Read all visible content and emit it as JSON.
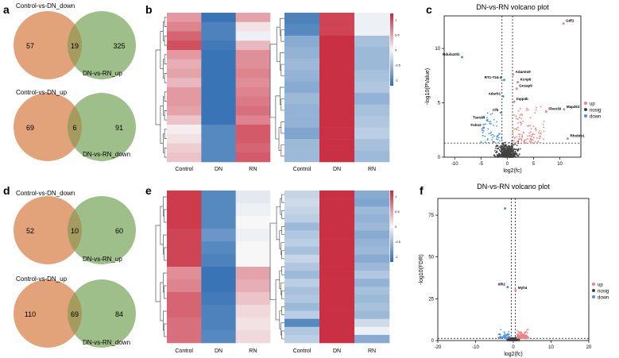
{
  "colors": {
    "venn_left": "#e2a37b",
    "venn_right": "#9fbf8a",
    "venn_overlap": "#a59b5f",
    "heat_low": "#2f6db3",
    "heat_mid": "#f7f7f7",
    "heat_high": "#c8263a",
    "volcano_up": "#f08080",
    "volcano_nosig": "#404040",
    "volcano_down": "#4a90e2"
  },
  "panels": {
    "a": "a",
    "b": "b",
    "c": "c",
    "d": "d",
    "e": "e",
    "f": "f"
  },
  "venns": [
    {
      "set1": "Control-vs-DN_down",
      "set2": "DN-vs-RN_up",
      "left": "57",
      "overlap": "19",
      "right": "325"
    },
    {
      "set1": "Control-vs-DN_up",
      "set2": "DN-vs-RN_down",
      "left": "69",
      "overlap": "6",
      "right": "91"
    },
    {
      "set1": "Control-vs-DN_down",
      "set2": "DN-vs-RN_up",
      "left": "52",
      "overlap": "10",
      "right": "60"
    },
    {
      "set1": "Control-vs-DN_up",
      "set2": "DN-vs-RN_down",
      "left": "110",
      "overlap": "69",
      "right": "84"
    }
  ],
  "heatmap_columns": [
    "Control",
    "DN",
    "RN"
  ],
  "heatmaps": [
    {
      "rows": [
        [
          0.45,
          -0.95,
          0.4
        ],
        [
          0.55,
          -0.85,
          0.1
        ],
        [
          0.7,
          -0.85,
          -0.05
        ],
        [
          0.8,
          -0.9,
          0.3
        ],
        [
          0.45,
          -0.95,
          0.5
        ],
        [
          0.35,
          -0.95,
          0.5
        ],
        [
          0.4,
          -0.95,
          0.55
        ],
        [
          0.3,
          -0.95,
          0.5
        ],
        [
          0.45,
          -0.95,
          0.55
        ],
        [
          0.45,
          -0.95,
          0.6
        ],
        [
          0.4,
          -0.95,
          0.65
        ],
        [
          0.25,
          -0.95,
          0.55
        ],
        [
          0.05,
          -0.8,
          0.75
        ],
        [
          0.1,
          -0.8,
          0.75
        ],
        [
          0.2,
          -0.8,
          0.7
        ],
        [
          0.25,
          -0.8,
          0.75
        ]
      ]
    },
    {
      "rows": [
        [
          -0.85,
          0.85,
          -0.05
        ],
        [
          -0.8,
          0.85,
          -0.05
        ],
        [
          -0.55,
          0.95,
          -0.4
        ],
        [
          -0.5,
          0.95,
          -0.45
        ],
        [
          -0.45,
          0.95,
          -0.45
        ],
        [
          -0.5,
          0.95,
          -0.4
        ],
        [
          -0.55,
          0.95,
          -0.35
        ],
        [
          -0.45,
          0.95,
          -0.5
        ],
        [
          -0.5,
          0.95,
          -0.4
        ],
        [
          -0.5,
          0.95,
          -0.35
        ],
        [
          -0.6,
          0.95,
          -0.3
        ],
        [
          -0.45,
          0.95,
          -0.4
        ],
        [
          -0.45,
          0.95,
          -0.45
        ]
      ]
    },
    {
      "rows": [
        [
          0.9,
          -0.8,
          -0.1
        ],
        [
          0.9,
          -0.8,
          -0.05
        ],
        [
          0.9,
          -0.8,
          0.0
        ],
        [
          0.85,
          -0.7,
          -0.05
        ],
        [
          0.85,
          -0.8,
          0.0
        ],
        [
          0.85,
          -0.85,
          0.0
        ],
        [
          0.5,
          -0.95,
          0.4
        ],
        [
          0.55,
          -0.95,
          0.35
        ],
        [
          0.7,
          -0.9,
          0.25
        ],
        [
          0.7,
          -0.85,
          0.15
        ],
        [
          0.65,
          -0.85,
          0.1
        ],
        [
          0.65,
          -0.8,
          0.15
        ]
      ]
    },
    {
      "rows": [
        [
          -0.25,
          0.95,
          -0.55
        ],
        [
          -0.2,
          0.95,
          -0.6
        ],
        [
          -0.25,
          0.95,
          -0.45
        ],
        [
          -0.3,
          0.95,
          -0.5
        ],
        [
          -0.45,
          0.95,
          -0.45
        ],
        [
          -0.35,
          0.95,
          -0.55
        ],
        [
          -0.3,
          0.95,
          -0.5
        ],
        [
          -0.4,
          0.95,
          -0.45
        ],
        [
          -0.25,
          0.95,
          -0.55
        ],
        [
          -0.35,
          0.95,
          -0.45
        ],
        [
          -0.45,
          0.95,
          -0.35
        ],
        [
          -0.3,
          0.95,
          -0.5
        ],
        [
          -0.4,
          0.95,
          -0.4
        ],
        [
          -0.35,
          0.95,
          -0.45
        ],
        [
          -0.45,
          0.95,
          -0.4
        ],
        [
          -0.3,
          0.95,
          -0.45
        ],
        [
          -0.8,
          0.95,
          -0.2
        ],
        [
          -0.35,
          0.95,
          -0.05
        ],
        [
          -0.3,
          0.95,
          -0.55
        ]
      ]
    }
  ],
  "colorbar_ticks": [
    {
      "v": 1,
      "label": "1"
    },
    {
      "v": 0.5,
      "label": "0.5"
    },
    {
      "v": 0,
      "label": "0"
    },
    {
      "v": -0.5,
      "label": "-0.5"
    },
    {
      "v": -1,
      "label": "-1"
    }
  ],
  "chart_data": [
    {
      "type": "scatter",
      "title": "DN-vs-RN volcano plot",
      "xlabel": "log2(fc)",
      "ylabel": "-log10(PValue)",
      "xlim": [
        -12,
        14
      ],
      "ylim": [
        0,
        13
      ],
      "xticks": [
        -10,
        -5,
        0,
        5,
        10
      ],
      "yticks": [
        0,
        5,
        10
      ],
      "vlines": [
        -1,
        1
      ],
      "hline": 1.3,
      "legend": [
        "up",
        "nosig",
        "down"
      ],
      "legend_position": "right",
      "labeled_points": [
        {
          "gene": "Gdf1",
          "x": 10.7,
          "y": 12.3,
          "class": "up"
        },
        {
          "gene": "Ndufa10l1",
          "x": -8.6,
          "y": 9.2,
          "class": "down"
        },
        {
          "gene": "RT1-T24-4",
          "x": -0.6,
          "y": 7.1,
          "class": "down"
        },
        {
          "gene": "Adamts9",
          "x": 1.1,
          "y": 7.6,
          "class": "up"
        },
        {
          "gene": "Kcnp6",
          "x": 2.0,
          "y": 6.9,
          "class": "up"
        },
        {
          "gene": "Gnsap9",
          "x": 1.8,
          "y": 6.3,
          "class": "up"
        },
        {
          "gene": "Adarb1",
          "x": -0.8,
          "y": 5.6,
          "class": "down"
        },
        {
          "gene": "Inpp4b",
          "x": 1.3,
          "y": 5.1,
          "class": "up"
        },
        {
          "gene": "Cfb",
          "x": -1.2,
          "y": 4.1,
          "class": "down"
        },
        {
          "gene": "Tsen34",
          "x": -3.8,
          "y": 3.4,
          "class": "down"
        },
        {
          "gene": "Folm2",
          "x": -4.5,
          "y": 2.7,
          "class": "down"
        },
        {
          "gene": "Fbxo39",
          "x": 7.4,
          "y": 4.2,
          "class": "up"
        },
        {
          "gene": "Map2k3",
          "x": 10.8,
          "y": 4.4,
          "class": "up"
        },
        {
          "gene": "Rhobtb1",
          "x": 11.5,
          "y": 1.7,
          "class": "up"
        }
      ]
    },
    {
      "type": "scatter",
      "title": "DN-vs-RN volcano plot",
      "xlabel": "log2(fc)",
      "ylabel": "-log10(FDR)",
      "xlim": [
        -20,
        20
      ],
      "ylim": [
        0,
        85
      ],
      "xticks": [
        -20,
        -10,
        0,
        10,
        20
      ],
      "yticks": [
        0,
        25,
        50,
        75
      ],
      "vlines": [
        -0.5,
        0.5
      ],
      "hline": 1.3,
      "legend": [
        "up",
        "nosig",
        "down"
      ],
      "legend_position": "right",
      "labeled_points": [
        {
          "gene": "Idh2",
          "x": -1.5,
          "y": 32,
          "class": "down"
        },
        {
          "gene": "Myh4",
          "x": 0.6,
          "y": 30,
          "class": "up"
        },
        {
          "gene": "",
          "x": -2.2,
          "y": 79,
          "class": "down"
        }
      ]
    }
  ]
}
